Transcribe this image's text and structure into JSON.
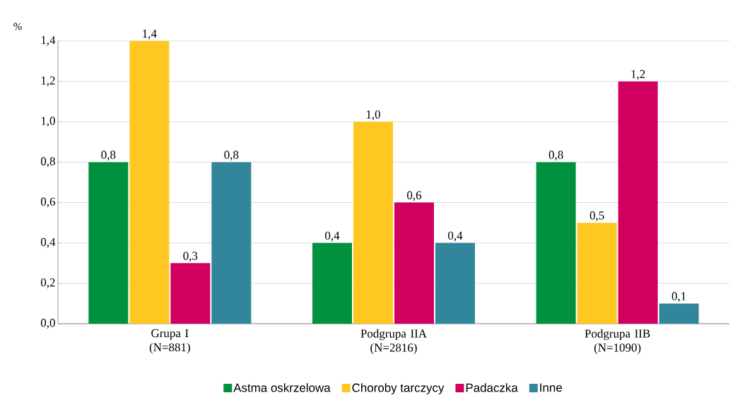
{
  "chart_data": {
    "type": "bar",
    "ylabel": "%",
    "categories": [
      "Grupa I (N=881)",
      "Podgrupa IIA (N=2816)",
      "Podgrupa IIB (N=1090)"
    ],
    "series": [
      {
        "name": "Astma oskrzelowa",
        "color": "#00913f",
        "values": [
          0.8,
          0.4,
          0.8
        ],
        "value_labels": [
          "0,8",
          "0,4",
          "0,8"
        ]
      },
      {
        "name": "Choroby tarczycy",
        "color": "#ffc820",
        "values": [
          1.4,
          1.0,
          0.5
        ],
        "value_labels": [
          "1,4",
          "1,0",
          "0,5"
        ]
      },
      {
        "name": "Padaczka",
        "color": "#d10060",
        "values": [
          0.3,
          0.6,
          1.2
        ],
        "value_labels": [
          "0,3",
          "0,6",
          "1,2"
        ]
      },
      {
        "name": "Inne",
        "color": "#31869b",
        "values": [
          0.8,
          0.4,
          0.1
        ],
        "value_labels": [
          "0,8",
          "0,4",
          "0,1"
        ]
      }
    ],
    "ylim": [
      0,
      1.4
    ],
    "yticks": [
      {
        "value": 0,
        "label": "0,0"
      },
      {
        "value": 0.2,
        "label": "0,2"
      },
      {
        "value": 0.4,
        "label": "0,4"
      },
      {
        "value": 0.6,
        "label": "0,6"
      },
      {
        "value": 0.8,
        "label": "0,8"
      },
      {
        "value": 1.0,
        "label": "1,0"
      },
      {
        "value": 1.2,
        "label": "1,2"
      },
      {
        "value": 1.4,
        "label": "1,4"
      }
    ],
    "grid": "y",
    "legend": "bottom"
  }
}
